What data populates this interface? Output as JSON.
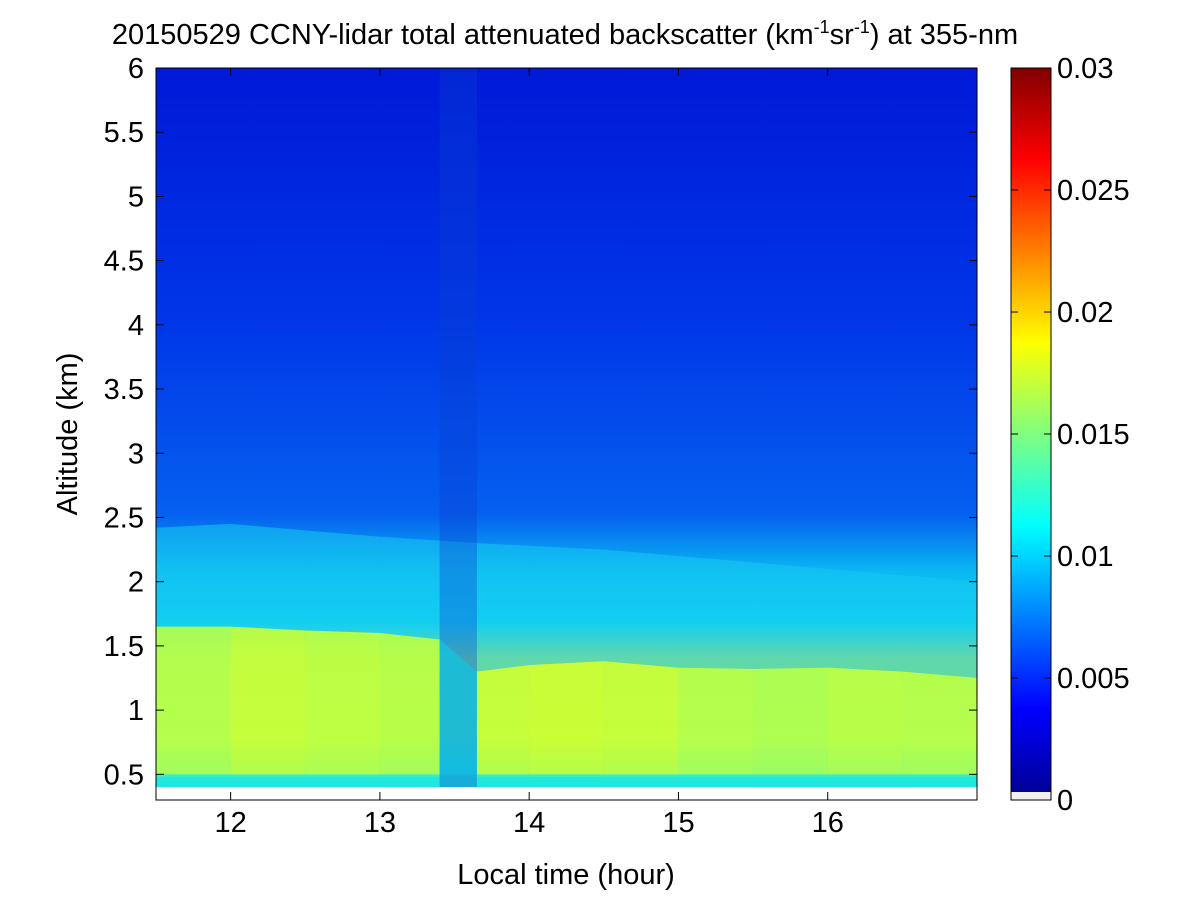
{
  "chart_data": {
    "type": "heatmap",
    "title": {
      "prefix": "20150529 CCNY-lidar total attenuated backscatter (km",
      "sup1": "-1",
      "mid": "sr",
      "sup2": "-1",
      "suffix": ") at 355-nm"
    },
    "xlabel": "Local time (hour)",
    "ylabel": "Altitude (km)",
    "xlim": [
      11.5,
      17.0
    ],
    "ylim": [
      0.3,
      6.0
    ],
    "xticks": [
      12,
      13,
      14,
      15,
      16
    ],
    "xtick_labels": [
      "12",
      "13",
      "14",
      "15",
      "16"
    ],
    "yticks": [
      0.5,
      1,
      1.5,
      2,
      2.5,
      3,
      3.5,
      4,
      4.5,
      5,
      5.5,
      6
    ],
    "ytick_labels": [
      "0.5",
      "1",
      "1.5",
      "2",
      "2.5",
      "3",
      "3.5",
      "4",
      "4.5",
      "5",
      "5.5",
      "6"
    ],
    "colorbar": {
      "range": [
        0,
        0.03
      ],
      "ticks": [
        0,
        0.005,
        0.01,
        0.015,
        0.02,
        0.025,
        0.03
      ],
      "tick_labels": [
        "0",
        "0.005",
        "0.01",
        "0.015",
        "0.02",
        "0.025",
        "0.03"
      ],
      "colormap": "jet"
    },
    "data_bottom_altitude": 0.4,
    "profile": [
      {
        "x": 11.5,
        "y0": 0.4,
        "aerosol_top": 1.65,
        "residual_top": 2.42,
        "aerosol_value": 0.0165
      },
      {
        "x": 12.0,
        "y0": 0.4,
        "aerosol_top": 1.65,
        "residual_top": 2.45,
        "aerosol_value": 0.017
      },
      {
        "x": 12.5,
        "y0": 0.4,
        "aerosol_top": 1.62,
        "residual_top": 2.4,
        "aerosol_value": 0.0168
      },
      {
        "x": 13.0,
        "y0": 0.4,
        "aerosol_top": 1.6,
        "residual_top": 2.35,
        "aerosol_value": 0.0166
      },
      {
        "x": 13.4,
        "y0": 0.4,
        "aerosol_top": 1.55,
        "residual_top": 2.32,
        "aerosol_value": 0.012
      },
      {
        "x": 13.65,
        "y0": 0.4,
        "aerosol_top": 1.3,
        "residual_top": 2.3,
        "aerosol_value": 0.017
      },
      {
        "x": 14.0,
        "y0": 0.4,
        "aerosol_top": 1.35,
        "residual_top": 2.28,
        "aerosol_value": 0.0172
      },
      {
        "x": 14.5,
        "y0": 0.4,
        "aerosol_top": 1.38,
        "residual_top": 2.25,
        "aerosol_value": 0.017
      },
      {
        "x": 15.0,
        "y0": 0.4,
        "aerosol_top": 1.33,
        "residual_top": 2.2,
        "aerosol_value": 0.0165
      },
      {
        "x": 15.5,
        "y0": 0.4,
        "aerosol_top": 1.32,
        "residual_top": 2.15,
        "aerosol_value": 0.0163
      },
      {
        "x": 16.0,
        "y0": 0.4,
        "aerosol_top": 1.33,
        "residual_top": 2.1,
        "aerosol_value": 0.0166
      },
      {
        "x": 16.5,
        "y0": 0.4,
        "aerosol_top": 1.3,
        "residual_top": 2.05,
        "aerosol_value": 0.0165
      },
      {
        "x": 17.0,
        "y0": 0.4,
        "aerosol_top": 1.25,
        "residual_top": 2.0,
        "aerosol_value": 0.016
      }
    ]
  }
}
